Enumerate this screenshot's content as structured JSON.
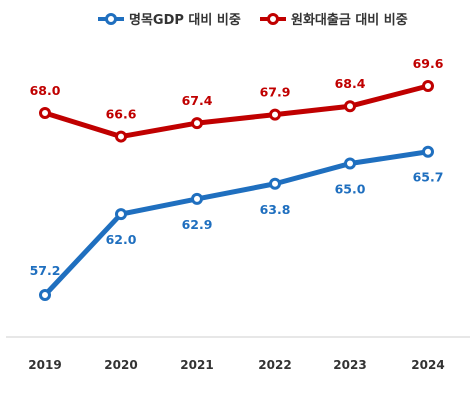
{
  "chart_data": {
    "type": "line",
    "categories": [
      "2019",
      "2020",
      "2021",
      "2022",
      "2023",
      "2024"
    ],
    "series": [
      {
        "name": "명목GDP 대비 비중",
        "values": [
          57.2,
          62.0,
          62.9,
          63.8,
          65.0,
          65.7
        ],
        "labels": [
          "57.2",
          "62.0",
          "62.9",
          "63.8",
          "65.0",
          "65.7"
        ],
        "color": "#1f6fbf"
      },
      {
        "name": "원화대출금 대비 비중",
        "values": [
          68.0,
          66.6,
          67.4,
          67.9,
          68.4,
          69.6
        ],
        "labels": [
          "68.0",
          "66.6",
          "67.4",
          "67.9",
          "68.4",
          "69.6"
        ],
        "color": "#c00000"
      }
    ],
    "title": "",
    "xlabel": "",
    "ylabel": "",
    "legend_position": "top-center",
    "grid": false
  }
}
